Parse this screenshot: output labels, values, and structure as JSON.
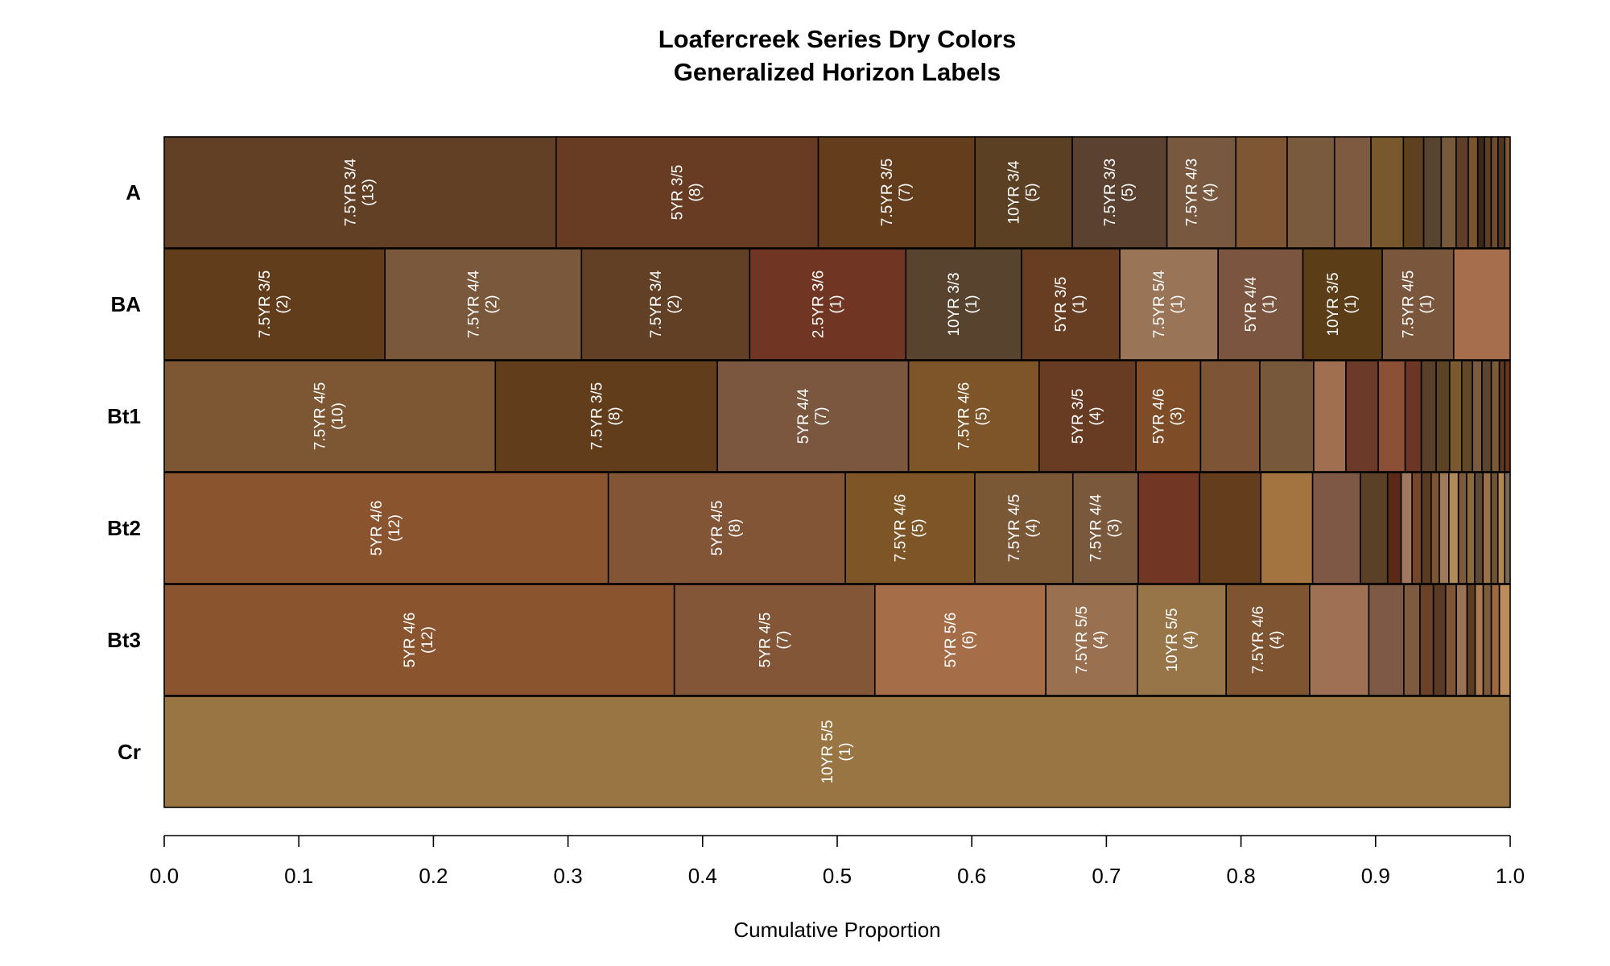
{
  "chart_data": {
    "type": "bar",
    "orientation": "horizontal",
    "stacked": true,
    "title": "Loafercreek Series Dry Colors",
    "subtitle": "Generalized Horizon Labels",
    "xlabel": "Cumulative Proportion",
    "ylabel": "",
    "xlim": [
      0,
      1
    ],
    "x_ticks": [
      "0.0",
      "0.1",
      "0.2",
      "0.3",
      "0.4",
      "0.5",
      "0.6",
      "0.7",
      "0.8",
      "0.9",
      "1.0"
    ],
    "grid": false,
    "legend": "none",
    "rows": [
      {
        "name": "A",
        "segments": [
          {
            "color": "#624026",
            "proportion": 0.29,
            "munsell": "7.5YR 3/4",
            "count": "(13)"
          },
          {
            "color": "#683C22",
            "proportion": 0.194,
            "munsell": "5YR 3/5",
            "count": "(8)"
          },
          {
            "color": "#633D1C",
            "proportion": 0.116,
            "munsell": "7.5YR 3/5",
            "count": "(7)"
          },
          {
            "color": "#5B4023",
            "proportion": 0.072,
            "munsell": "10YR 3/4",
            "count": "(5)"
          },
          {
            "color": "#5B4230",
            "proportion": 0.07,
            "munsell": "7.5YR 3/3",
            "count": "(5)"
          },
          {
            "color": "#78583E",
            "proportion": 0.051,
            "munsell": "7.5YR 4/3",
            "count": "(4)"
          },
          {
            "color": "#7E5633",
            "proportion": 0.038
          },
          {
            "color": "#7A5A3D",
            "proportion": 0.035
          },
          {
            "color": "#7E5A41",
            "proportion": 0.027
          },
          {
            "color": "#7A582E",
            "proportion": 0.024
          },
          {
            "color": "#5E4220",
            "proportion": 0.015
          },
          {
            "color": "#574430",
            "proportion": 0.013
          },
          {
            "color": "#77593B",
            "proportion": 0.011
          },
          {
            "color": "#5F3F28",
            "proportion": 0.009
          },
          {
            "color": "#7A542C",
            "proportion": 0.007
          },
          {
            "color": "#3A2814",
            "proportion": 0.005
          },
          {
            "color": "#5C3F24",
            "proportion": 0.005
          },
          {
            "color": "#6E4A2E",
            "proportion": 0.005
          },
          {
            "color": "#4E3620",
            "proportion": 0.005
          },
          {
            "color": "#7C5637",
            "proportion": 0.004
          }
        ]
      },
      {
        "name": "BA",
        "segments": [
          {
            "color": "#623D1C",
            "proportion": 0.164,
            "munsell": "7.5YR 3/5",
            "count": "(2)"
          },
          {
            "color": "#7A583B",
            "proportion": 0.146,
            "munsell": "7.5YR 4/4",
            "count": "(2)"
          },
          {
            "color": "#614026",
            "proportion": 0.125,
            "munsell": "7.5YR 3/4",
            "count": "(2)"
          },
          {
            "color": "#713623",
            "proportion": 0.116,
            "munsell": "2.5YR 3/6",
            "count": "(1)"
          },
          {
            "color": "#57432E",
            "proportion": 0.086,
            "munsell": "10YR 3/3",
            "count": "(1)"
          },
          {
            "color": "#673E22",
            "proportion": 0.073,
            "munsell": "5YR 3/5",
            "count": "(1)"
          },
          {
            "color": "#997457",
            "proportion": 0.073,
            "munsell": "7.5YR 5/4",
            "count": "(1)"
          },
          {
            "color": "#7B553F",
            "proportion": 0.063,
            "munsell": "5YR 4/4",
            "count": "(1)"
          },
          {
            "color": "#5B3E18",
            "proportion": 0.059,
            "munsell": "10YR 3/5",
            "count": "(1)"
          },
          {
            "color": "#7A573C",
            "proportion": 0.053,
            "munsell": "7.5YR 4/5",
            "count": "(1)"
          },
          {
            "color": "#A66E4C",
            "proportion": 0.042
          }
        ]
      },
      {
        "name": "Bt1",
        "segments": [
          {
            "color": "#7D5633",
            "proportion": 0.246,
            "munsell": "7.5YR 4/5",
            "count": "(10)"
          },
          {
            "color": "#623D1C",
            "proportion": 0.165,
            "munsell": "7.5YR 3/5",
            "count": "(8)"
          },
          {
            "color": "#7B573F",
            "proportion": 0.142,
            "munsell": "5YR 4/4",
            "count": "(7)"
          },
          {
            "color": "#7D5528",
            "proportion": 0.097,
            "munsell": "7.5YR 4/6",
            "count": "(5)"
          },
          {
            "color": "#683C22",
            "proportion": 0.072,
            "munsell": "5YR 3/5",
            "count": "(4)"
          },
          {
            "color": "#7E4C26",
            "proportion": 0.048,
            "munsell": "5YR 4/6",
            "count": "(3)"
          },
          {
            "color": "#7E5436",
            "proportion": 0.044
          },
          {
            "color": "#78583B",
            "proportion": 0.04
          },
          {
            "color": "#A06E51",
            "proportion": 0.024
          },
          {
            "color": "#6C3A28",
            "proportion": 0.024
          },
          {
            "color": "#8C5036",
            "proportion": 0.02
          },
          {
            "color": "#6B3624",
            "proportion": 0.012
          },
          {
            "color": "#5A402A",
            "proportion": 0.011
          },
          {
            "color": "#5A4424",
            "proportion": 0.01
          },
          {
            "color": "#7A5A2C",
            "proportion": 0.009
          },
          {
            "color": "#614828",
            "proportion": 0.008
          },
          {
            "color": "#7A5A40",
            "proportion": 0.007
          },
          {
            "color": "#5C4530",
            "proportion": 0.007
          },
          {
            "color": "#7C5A38",
            "proportion": 0.006
          },
          {
            "color": "#5A3A22",
            "proportion": 0.004
          },
          {
            "color": "#6B3218",
            "proportion": 0.004
          }
        ]
      },
      {
        "name": "Bt2",
        "segments": [
          {
            "color": "#8A542F",
            "proportion": 0.326,
            "munsell": "5YR 4/6",
            "count": "(12)"
          },
          {
            "color": "#825537",
            "proportion": 0.174,
            "munsell": "5YR 4/5",
            "count": "(8)"
          },
          {
            "color": "#7D5526",
            "proportion": 0.095,
            "munsell": "7.5YR 4/6",
            "count": "(5)"
          },
          {
            "color": "#7B5835",
            "proportion": 0.072,
            "munsell": "7.5YR 4/5",
            "count": "(4)"
          },
          {
            "color": "#7A583C",
            "proportion": 0.048,
            "munsell": "7.5YR 4/4",
            "count": "(3)"
          },
          {
            "color": "#713624",
            "proportion": 0.045
          },
          {
            "color": "#633D1C",
            "proportion": 0.045
          },
          {
            "color": "#A37340",
            "proportion": 0.038
          },
          {
            "color": "#7E5844",
            "proportion": 0.035
          },
          {
            "color": "#5B4028",
            "proportion": 0.02
          },
          {
            "color": "#5A2A16",
            "proportion": 0.01
          },
          {
            "color": "#A07860",
            "proportion": 0.008
          },
          {
            "color": "#74462A",
            "proportion": 0.007
          },
          {
            "color": "#5A3A22",
            "proportion": 0.007
          },
          {
            "color": "#7C5534",
            "proportion": 0.006
          },
          {
            "color": "#A07A58",
            "proportion": 0.007
          },
          {
            "color": "#B08A58",
            "proportion": 0.007
          },
          {
            "color": "#7A5A3A",
            "proportion": 0.006
          },
          {
            "color": "#8A6A3A",
            "proportion": 0.006
          },
          {
            "color": "#5E4A34",
            "proportion": 0.006
          },
          {
            "color": "#9A7048",
            "proportion": 0.006
          },
          {
            "color": "#6E5234",
            "proportion": 0.005
          },
          {
            "color": "#B08656",
            "proportion": 0.005
          },
          {
            "color": "#7A6A50",
            "proportion": 0.004
          }
        ]
      },
      {
        "name": "Bt3",
        "segments": [
          {
            "color": "#8A552E",
            "proportion": 0.379,
            "munsell": "5YR 4/6",
            "count": "(12)"
          },
          {
            "color": "#825637",
            "proportion": 0.149,
            "munsell": "5YR 4/5",
            "count": "(7)"
          },
          {
            "color": "#A56D48",
            "proportion": 0.127,
            "munsell": "5YR 5/6",
            "count": "(6)"
          },
          {
            "color": "#9A7150",
            "proportion": 0.068,
            "munsell": "7.5YR 5/5",
            "count": "(4)"
          },
          {
            "color": "#987548",
            "proportion": 0.066,
            "munsell": "10YR 5/5",
            "count": "(4)"
          },
          {
            "color": "#7E5530",
            "proportion": 0.062,
            "munsell": "7.5YR 4/6",
            "count": "(4)"
          },
          {
            "color": "#A07054",
            "proportion": 0.044
          },
          {
            "color": "#7E5A46",
            "proportion": 0.026
          },
          {
            "color": "#7E5A40",
            "proportion": 0.012
          },
          {
            "color": "#6A4228",
            "proportion": 0.01
          },
          {
            "color": "#5A3A24",
            "proportion": 0.009
          },
          {
            "color": "#7E5536",
            "proportion": 0.008
          },
          {
            "color": "#9A7258",
            "proportion": 0.008
          },
          {
            "color": "#5E3E22",
            "proportion": 0.006
          },
          {
            "color": "#AA7A4E",
            "proportion": 0.006
          },
          {
            "color": "#7C5A3A",
            "proportion": 0.006
          },
          {
            "color": "#A0683E",
            "proportion": 0.006
          },
          {
            "color": "#BC8C5A",
            "proportion": 0.008
          }
        ]
      },
      {
        "name": "Cr",
        "segments": [
          {
            "color": "#987542",
            "proportion": 1.0,
            "munsell": "10YR 5/5",
            "count": "(1)"
          }
        ]
      }
    ]
  }
}
